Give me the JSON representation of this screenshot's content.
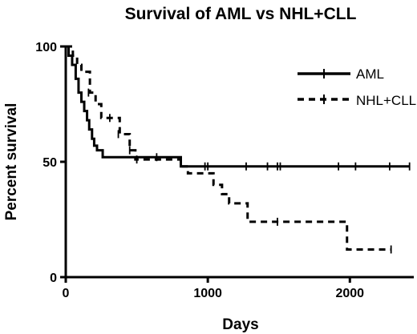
{
  "chart_data": {
    "type": "line",
    "title": "Survival of AML vs NHL+CLL",
    "xlabel": "Days",
    "ylabel": "Percent survival",
    "xlim": [
      0,
      2450
    ],
    "ylim": [
      0,
      100
    ],
    "x_ticks": [
      0,
      1000,
      2000
    ],
    "y_ticks": [
      0,
      50,
      100
    ],
    "grid": false,
    "legend_position": "top-right",
    "series": [
      {
        "name": "AML",
        "style": "solid",
        "color": "#000000",
        "steps": [
          [
            0,
            100
          ],
          [
            20,
            96
          ],
          [
            45,
            92
          ],
          [
            70,
            86
          ],
          [
            90,
            80
          ],
          [
            110,
            76
          ],
          [
            130,
            72
          ],
          [
            150,
            68
          ],
          [
            165,
            64
          ],
          [
            185,
            60
          ],
          [
            200,
            57
          ],
          [
            220,
            55
          ],
          [
            260,
            52
          ],
          [
            810,
            48
          ],
          [
            2420,
            48
          ]
        ],
        "censored": [
          [
            640,
            52
          ],
          [
            980,
            48
          ],
          [
            1000,
            48
          ],
          [
            1270,
            48
          ],
          [
            1420,
            48
          ],
          [
            1490,
            48
          ],
          [
            1510,
            48
          ],
          [
            1920,
            48
          ],
          [
            2040,
            48
          ],
          [
            2280,
            48
          ],
          [
            2420,
            48
          ]
        ]
      },
      {
        "name": "NHL+CLL",
        "style": "dashed",
        "color": "#000000",
        "steps": [
          [
            0,
            100
          ],
          [
            50,
            96
          ],
          [
            80,
            92
          ],
          [
            110,
            89
          ],
          [
            170,
            80
          ],
          [
            210,
            75
          ],
          [
            250,
            69
          ],
          [
            380,
            62
          ],
          [
            450,
            55
          ],
          [
            490,
            51
          ],
          [
            810,
            48
          ],
          [
            860,
            45
          ],
          [
            1040,
            40
          ],
          [
            1100,
            36
          ],
          [
            1150,
            32
          ],
          [
            1280,
            24
          ],
          [
            1980,
            12
          ],
          [
            2290,
            12
          ]
        ],
        "censored": [
          [
            160,
            80
          ],
          [
            310,
            69
          ],
          [
            370,
            62
          ],
          [
            450,
            55
          ],
          [
            500,
            51
          ],
          [
            1490,
            24
          ],
          [
            2290,
            12
          ]
        ]
      }
    ]
  }
}
